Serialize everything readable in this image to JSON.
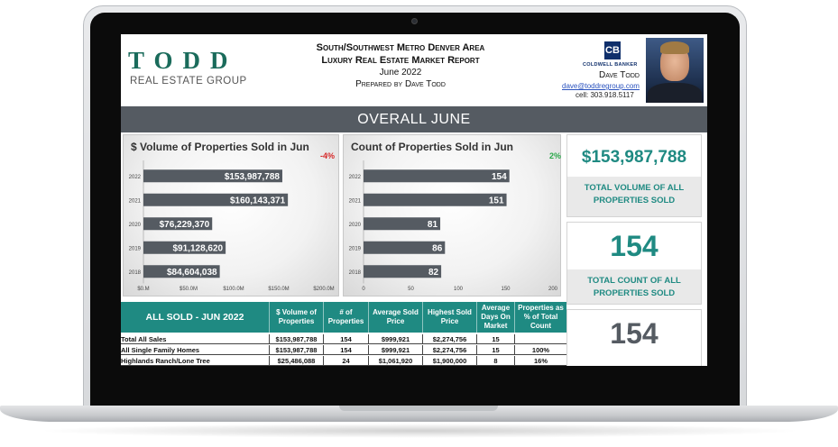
{
  "header": {
    "logo_main": "TODD",
    "logo_sub": "REAL ESTATE GROUP",
    "title_line1": "South/Southwest Metro Denver Area",
    "title_line2": "Luxury Real Estate Market Report",
    "title_date": "June 2022",
    "title_prepared": "Prepared by Dave Todd",
    "brokerage_logo": "CB",
    "brokerage": "COLDWELL BANKER",
    "agent_name": "Dave Todd",
    "agent_email": "dave@toddregroup.com",
    "agent_cell": "cell:  303.918.5117"
  },
  "banner": {
    "text": "OVERALL JUNE"
  },
  "chart_data": [
    {
      "type": "bar",
      "title": "$ Volume of Properties Sold in Jun",
      "change": "-4%",
      "change_color": "#d62828",
      "categories": [
        "2022",
        "2021",
        "2020",
        "2019",
        "2018"
      ],
      "values": [
        153987788,
        160143371,
        76229370,
        91128620,
        84604038
      ],
      "labels": [
        "$153,987,788",
        "$160,143,371",
        "$76,229,370",
        "$91,128,620",
        "$84,604,038"
      ],
      "x_ticks": [
        "$0.M",
        "$50.0M",
        "$100.0M",
        "$150.0M",
        "$200.0M"
      ],
      "xlim": [
        0,
        200000000
      ],
      "bar_color": "#555b62"
    },
    {
      "type": "bar",
      "title": "Count of Properties Sold in Jun",
      "change": "2%",
      "change_color": "#2aa84a",
      "categories": [
        "2022",
        "2021",
        "2020",
        "2019",
        "2018"
      ],
      "values": [
        154,
        151,
        81,
        86,
        82
      ],
      "labels": [
        "154",
        "151",
        "81",
        "86",
        "82"
      ],
      "x_ticks": [
        "0",
        "50",
        "100",
        "150",
        "200"
      ],
      "xlim": [
        0,
        200
      ],
      "bar_color": "#555b62"
    }
  ],
  "kpis": [
    {
      "value": "$153,987,788",
      "label": "TOTAL VOLUME OF ALL PROPERTIES SOLD"
    },
    {
      "value": "154",
      "label": "TOTAL COUNT OF ALL PROPERTIES SOLD"
    },
    {
      "value": "154",
      "label": ""
    }
  ],
  "table": {
    "title": "ALL SOLD - JUN 2022",
    "columns": [
      "$ Volume of Properties",
      "# of Properties",
      "Average Sold Price",
      "Highest Sold Price",
      "Average Days On Market",
      "Properties as % of Total Count"
    ],
    "rows": [
      [
        "Total All Sales",
        "$153,987,788",
        "154",
        "$999,921",
        "$2,274,756",
        "15",
        ""
      ],
      [
        "All Single Family Homes",
        "$153,987,788",
        "154",
        "$999,921",
        "$2,274,756",
        "15",
        "100%"
      ],
      [
        "Highlands Ranch/Lone Tree",
        "$25,486,088",
        "24",
        "$1,061,920",
        "$1,900,000",
        "8",
        "16%"
      ]
    ]
  }
}
